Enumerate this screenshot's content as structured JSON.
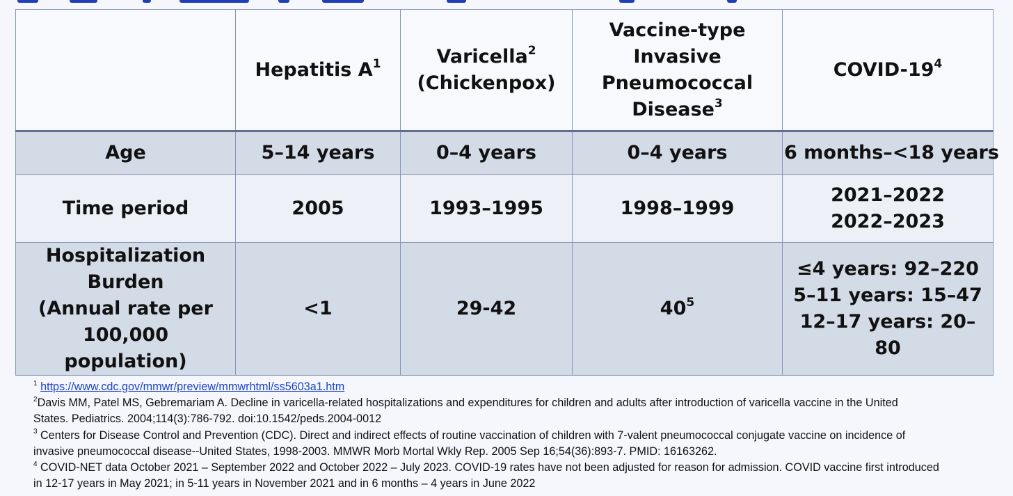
{
  "colors": {
    "header_bg": "#f8f9fd",
    "shaded_row_bg": "#d3dbe7",
    "light_row_bg": "#edf0f7",
    "border": "#8596b6",
    "link": "#1a44c8",
    "title_strip": "#1f3fb8"
  },
  "table": {
    "headers": [
      {
        "label": "",
        "sup": ""
      },
      {
        "label": "Hepatitis A",
        "sup": "1"
      },
      {
        "label_lines": [
          "Varicella",
          "(Chickenpox)"
        ],
        "sup": "2"
      },
      {
        "label_lines": [
          "Vaccine-type",
          "Invasive",
          "Pneumococcal",
          "Disease"
        ],
        "sup": "3"
      },
      {
        "label": "COVID-19",
        "sup": "4"
      }
    ],
    "rows": {
      "age": {
        "label": "Age",
        "values": [
          "5–14 years",
          "0–4 years",
          "0–4 years",
          "6 months–<18 years"
        ]
      },
      "time_period": {
        "label": "Time period",
        "values": [
          "2005",
          "1993–1995",
          "1998–1999"
        ],
        "covid_lines": [
          "2021–2022",
          "2022–2023"
        ]
      },
      "hospitalization": {
        "label_lines": [
          "Hospitalization",
          "Burden",
          "(Annual rate per",
          "100,000 population)"
        ],
        "hep_a": "<1",
        "varicella": "29-42",
        "pneumococcal": "40",
        "pneumococcal_sup": "5",
        "covid_lines": [
          "≤4 years: 92–220",
          "5–11 years: 15–47",
          "12–17 years: 20–80"
        ]
      }
    }
  },
  "footnotes": {
    "fn1": {
      "marker": "1",
      "link": "https://www.cdc.gov/mmwr/preview/mmwrhtml/ss5603a1.htm"
    },
    "fn2": {
      "marker": "2",
      "lines": [
        "Davis MM, Patel MS, Gebremariam A. Decline in varicella-related hospitalizations and expenditures for children and adults after introduction of varicella vaccine in the United",
        "States. Pediatrics. 2004;114(3):786-792. doi:10.1542/peds.2004-0012"
      ]
    },
    "fn3": {
      "marker": "3",
      "lines": [
        " Centers for Disease Control and Prevention (CDC). Direct and indirect effects of routine vaccination of children with 7-valent pneumococcal conjugate vaccine on incidence of",
        "invasive pneumococcal disease--United States, 1998-2003. MMWR Morb Mortal Wkly Rep. 2005 Sep 16;54(36):893-7. PMID: 16163262."
      ]
    },
    "fn4": {
      "marker": "4",
      "lines": [
        " COVID-NET data October 2021 – September 2022 and October 2022 – July 2023. COVID-19 rates have not been adjusted for reason for admission. COVID vaccine first introduced",
        "in 12-17 years in May 2021; in 5-11 years in November 2021 and in 6 months – 4 years in June 2022"
      ]
    }
  }
}
